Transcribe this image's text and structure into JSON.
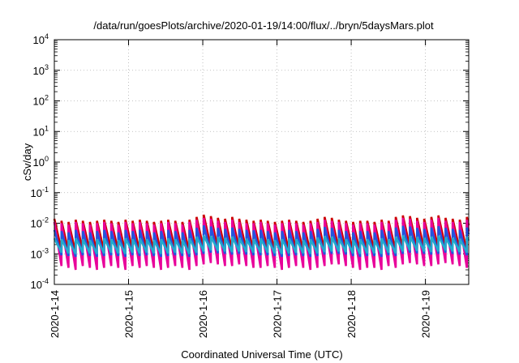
{
  "chart_data": {
    "type": "line",
    "title": "/data/run/goesPlots/archive/2020-01-19/14:00/flux/../bryn/5daysMars.plot",
    "xlabel": "Coordinated Universal Time (UTC)",
    "ylabel": "cSv/day",
    "yscale": "log",
    "ylim": [
      0.0001,
      10000
    ],
    "y_tick_labels": [
      {
        "base": "10",
        "exp": "-4"
      },
      {
        "base": "10",
        "exp": "-3"
      },
      {
        "base": "10",
        "exp": "-2"
      },
      {
        "base": "10",
        "exp": "-1"
      },
      {
        "base": "10",
        "exp": "0"
      },
      {
        "base": "10",
        "exp": "1"
      },
      {
        "base": "10",
        "exp": "2"
      },
      {
        "base": "10",
        "exp": "3"
      },
      {
        "base": "10",
        "exp": "4"
      }
    ],
    "xlim": [
      "2020-01-14 00:00",
      "2020-01-19 14:00"
    ],
    "x_tick_labels": [
      "2020-1-14",
      "2020-1-15",
      "2020-1-16",
      "2020-1-17",
      "2020-1-18",
      "2020-1-19"
    ],
    "grid": true,
    "legend": "none",
    "sawtooth_period_hours": 2.3,
    "series": [
      {
        "color": "#cc0000",
        "peaks": [
          0.014,
          0.012,
          0.011,
          0.013,
          0.012,
          0.011,
          0.012,
          0.013,
          0.012,
          0.011,
          0.013,
          0.012,
          0.013,
          0.012,
          0.011,
          0.012,
          0.013,
          0.012,
          0.011,
          0.013,
          0.016,
          0.019,
          0.017,
          0.015,
          0.014,
          0.016,
          0.014,
          0.013,
          0.012,
          0.013,
          0.012,
          0.011,
          0.012,
          0.013,
          0.012,
          0.011,
          0.012,
          0.014,
          0.016,
          0.015,
          0.013,
          0.012,
          0.011,
          0.012,
          0.012,
          0.011,
          0.013,
          0.012,
          0.016,
          0.018,
          0.017,
          0.015,
          0.014,
          0.016,
          0.018,
          0.015,
          0.014,
          0.013,
          0.016
        ],
        "troughs": [
          0.0013,
          0.0012,
          0.0011,
          0.0013,
          0.0012,
          0.0011,
          0.0012,
          0.0013,
          0.0012,
          0.0011,
          0.0013,
          0.0012,
          0.0013,
          0.0012,
          0.0011,
          0.0012,
          0.0013,
          0.0012,
          0.0011,
          0.0013,
          0.0014,
          0.0016,
          0.0015,
          0.0014,
          0.0013,
          0.0014,
          0.0013,
          0.0012,
          0.0012,
          0.0013,
          0.0012,
          0.0011,
          0.0012,
          0.0013,
          0.0012,
          0.0011,
          0.0012,
          0.0013,
          0.0014,
          0.0014,
          0.0013,
          0.0012,
          0.0011,
          0.0012,
          0.0012,
          0.0011,
          0.0013,
          0.0012,
          0.0014,
          0.0016,
          0.0015,
          0.0014,
          0.0013,
          0.0014,
          0.0016,
          0.0014,
          0.0013,
          0.0012,
          0.0014
        ]
      },
      {
        "color": "#e8009a",
        "peaks": [
          0.011,
          0.01,
          0.009,
          0.011,
          0.01,
          0.009,
          0.01,
          0.011,
          0.01,
          0.009,
          0.011,
          0.01,
          0.011,
          0.01,
          0.009,
          0.01,
          0.011,
          0.01,
          0.009,
          0.011,
          0.013,
          0.015,
          0.014,
          0.012,
          0.011,
          0.013,
          0.011,
          0.01,
          0.01,
          0.011,
          0.01,
          0.009,
          0.01,
          0.011,
          0.01,
          0.009,
          0.01,
          0.011,
          0.013,
          0.012,
          0.011,
          0.01,
          0.009,
          0.01,
          0.01,
          0.009,
          0.011,
          0.01,
          0.013,
          0.015,
          0.014,
          0.012,
          0.011,
          0.013,
          0.015,
          0.012,
          0.011,
          0.011,
          0.013
        ],
        "troughs": [
          0.0004,
          0.00035,
          0.0003,
          0.0004,
          0.00035,
          0.0003,
          0.00035,
          0.0004,
          0.00035,
          0.0003,
          0.0004,
          0.00035,
          0.0004,
          0.00035,
          0.0003,
          0.00035,
          0.0004,
          0.00035,
          0.0003,
          0.0004,
          0.00045,
          0.0005,
          0.00045,
          0.0004,
          0.0004,
          0.00045,
          0.0004,
          0.00035,
          0.00035,
          0.0004,
          0.00035,
          0.0003,
          0.00035,
          0.0004,
          0.00035,
          0.0003,
          0.00035,
          0.0004,
          0.00045,
          0.00045,
          0.0004,
          0.00035,
          0.0003,
          0.00035,
          0.00035,
          0.0003,
          0.0004,
          0.00035,
          0.00045,
          0.0005,
          0.00045,
          0.0004,
          0.0004,
          0.00045,
          0.0005,
          0.00045,
          0.0004,
          0.00035,
          0.00045
        ]
      },
      {
        "color": "#2255dd",
        "peaks": [
          0.006,
          0.0055,
          0.005,
          0.006,
          0.0055,
          0.005,
          0.0055,
          0.006,
          0.0055,
          0.005,
          0.006,
          0.0055,
          0.006,
          0.0055,
          0.005,
          0.0055,
          0.006,
          0.0055,
          0.005,
          0.006,
          0.007,
          0.0085,
          0.0078,
          0.007,
          0.0065,
          0.0072,
          0.0065,
          0.006,
          0.0058,
          0.006,
          0.0055,
          0.005,
          0.0055,
          0.006,
          0.0055,
          0.005,
          0.0055,
          0.0065,
          0.0075,
          0.007,
          0.006,
          0.0055,
          0.005,
          0.0055,
          0.0055,
          0.005,
          0.006,
          0.0055,
          0.0072,
          0.0082,
          0.0078,
          0.007,
          0.0065,
          0.0072,
          0.008,
          0.007,
          0.0065,
          0.006,
          0.0072
        ],
        "troughs": [
          0.0009,
          0.00085,
          0.0008,
          0.0009,
          0.00085,
          0.0008,
          0.00085,
          0.0009,
          0.00085,
          0.0008,
          0.0009,
          0.00085,
          0.0009,
          0.00085,
          0.0008,
          0.00085,
          0.0009,
          0.00085,
          0.0008,
          0.0009,
          0.001,
          0.0011,
          0.00105,
          0.001,
          0.00095,
          0.001,
          0.00095,
          0.0009,
          0.0009,
          0.0009,
          0.00085,
          0.0008,
          0.00085,
          0.0009,
          0.00085,
          0.0008,
          0.00085,
          0.00095,
          0.001,
          0.001,
          0.00095,
          0.00085,
          0.0008,
          0.00085,
          0.00085,
          0.0008,
          0.0009,
          0.00085,
          0.001,
          0.0011,
          0.00105,
          0.001,
          0.00095,
          0.001,
          0.0011,
          0.001,
          0.00095,
          0.0009,
          0.001
        ]
      },
      {
        "color": "#22aacc",
        "peaks": [
          0.0032,
          0.003,
          0.0028,
          0.0032,
          0.003,
          0.0028,
          0.003,
          0.0032,
          0.003,
          0.0028,
          0.0032,
          0.003,
          0.0032,
          0.003,
          0.0028,
          0.003,
          0.0032,
          0.003,
          0.0028,
          0.0032,
          0.0036,
          0.004,
          0.0038,
          0.0035,
          0.0033,
          0.0036,
          0.0033,
          0.0031,
          0.003,
          0.0032,
          0.003,
          0.0028,
          0.003,
          0.0032,
          0.003,
          0.0028,
          0.003,
          0.0034,
          0.0038,
          0.0036,
          0.0032,
          0.003,
          0.0028,
          0.003,
          0.003,
          0.0028,
          0.0032,
          0.003,
          0.0036,
          0.004,
          0.0038,
          0.0035,
          0.0033,
          0.0036,
          0.0039,
          0.0035,
          0.0033,
          0.0031,
          0.0036
        ],
        "troughs": [
          0.0011,
          0.00105,
          0.001,
          0.0011,
          0.00105,
          0.001,
          0.00105,
          0.0011,
          0.00105,
          0.001,
          0.0011,
          0.00105,
          0.0011,
          0.00105,
          0.001,
          0.00105,
          0.0011,
          0.00105,
          0.001,
          0.0011,
          0.0012,
          0.0013,
          0.00125,
          0.0012,
          0.00115,
          0.0012,
          0.00115,
          0.0011,
          0.0011,
          0.0011,
          0.00105,
          0.001,
          0.00105,
          0.0011,
          0.00105,
          0.001,
          0.00105,
          0.00115,
          0.0012,
          0.0012,
          0.00115,
          0.00105,
          0.001,
          0.00105,
          0.00105,
          0.001,
          0.0011,
          0.00105,
          0.0012,
          0.0013,
          0.00125,
          0.0012,
          0.00115,
          0.0012,
          0.0013,
          0.0012,
          0.00115,
          0.0011,
          0.0012
        ]
      }
    ]
  }
}
